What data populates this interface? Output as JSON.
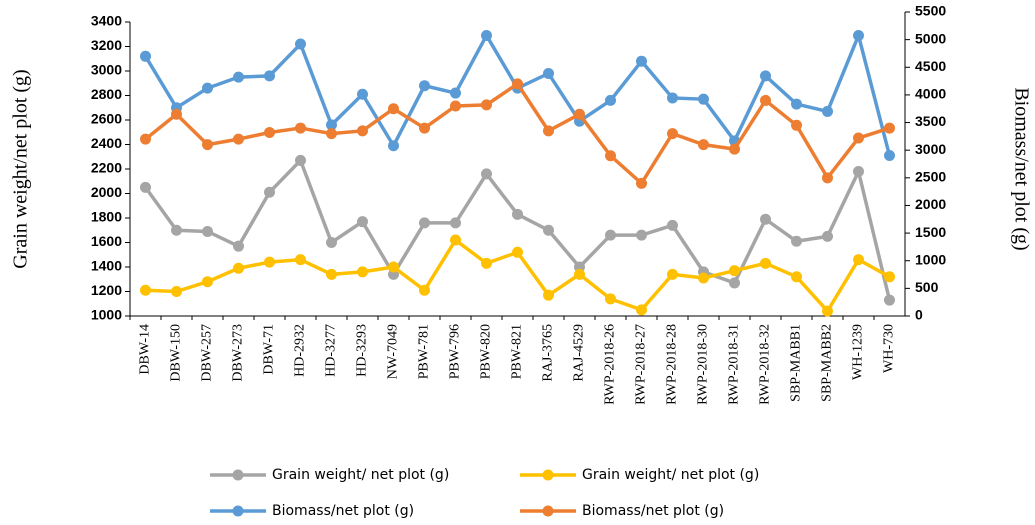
{
  "chart_data": {
    "type": "line",
    "y_label": "Grain weight/net plot (g)",
    "y2_label": "Biomass/net plot (g)",
    "categories": [
      "DBW-14",
      "DBW-150",
      "DBW-257",
      "DBW-273",
      "DBW-71",
      "HD-2932",
      "HD-3277",
      "HD-3293",
      "NW-7049",
      "PBW-781",
      "PBW-796",
      "PBW-820",
      "PBW-821",
      "RAJ-3765",
      "RAJ-4529",
      "RWP-2018-26",
      "RWP-2018-27",
      "RWP-2018-28",
      "RWP-2018-30",
      "RWP-2018-31",
      "RWP-2018-32",
      "SBP-MABB1",
      "SBP-MABB2",
      "WH-1239",
      "WH-730"
    ],
    "series": [
      {
        "name": "Grain weight/ net plot (g)",
        "color": "#a5a5a5",
        "values": [
          2050,
          1700,
          1690,
          1570,
          2010,
          2270,
          1600,
          1770,
          1340,
          1760,
          1760,
          2160,
          1830,
          1700,
          1400,
          1660,
          1660,
          1740,
          1360,
          1270,
          1790,
          1610,
          1650,
          2180,
          1130
        ]
      },
      {
        "name": "Grain weight/ net plot (g)",
        "color": "#ffc000",
        "values": [
          1210,
          1200,
          1280,
          1390,
          1440,
          1460,
          1340,
          1360,
          1400,
          1210,
          1620,
          1430,
          1520,
          1170,
          1340,
          1140,
          1050,
          1340,
          1310,
          1370,
          1430,
          1320,
          1040,
          1460,
          1320
        ]
      },
      {
        "name": "Biomass/net plot (g)",
        "color": "#5b9bd5",
        "values": [
          3120,
          2700,
          2860,
          2950,
          2960,
          3220,
          2560,
          2810,
          2390,
          2880,
          2820,
          3290,
          2860,
          2980,
          2590,
          2760,
          3080,
          2780,
          2770,
          2430,
          2960,
          2730,
          2670,
          3290,
          2310
        ]
      },
      {
        "name": "Biomass/net plot (g)",
        "color": "#ed7d31",
        "axis": "y2",
        "values": [
          3200,
          3650,
          3100,
          3200,
          3320,
          3400,
          3300,
          3350,
          3750,
          3400,
          3800,
          3820,
          4200,
          3350,
          3650,
          2900,
          2400,
          3300,
          3100,
          3020,
          3900,
          3450,
          2500,
          3220,
          3400
        ]
      }
    ],
    "ylim": [
      1000,
      3400
    ],
    "yticks": [
      1000,
      1200,
      1400,
      1600,
      1800,
      2000,
      2200,
      2400,
      2600,
      2800,
      3000,
      3200,
      3400
    ],
    "y2lim": [
      0,
      5500
    ],
    "y2ticks": [
      0,
      500,
      1000,
      1500,
      2000,
      2500,
      3000,
      3500,
      4000,
      4500,
      5000,
      5500
    ]
  }
}
